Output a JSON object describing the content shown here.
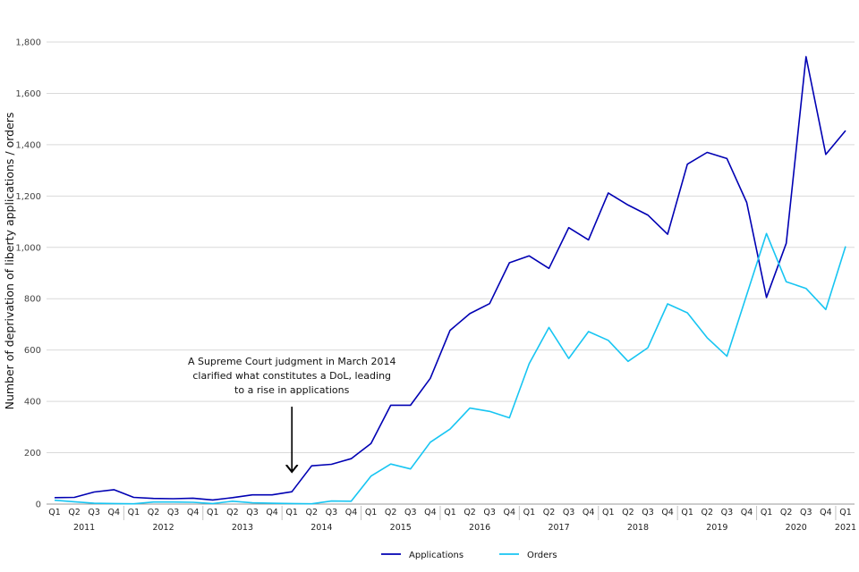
{
  "chart_data": {
    "type": "line",
    "ylabel": "Number of deprivation of liberty applications / orders",
    "ylim": [
      0,
      1800
    ],
    "yticks": [
      0,
      200,
      400,
      600,
      800,
      1000,
      1200,
      1400,
      1600,
      1800
    ],
    "ytick_labels": [
      "0",
      "200",
      "400",
      "600",
      "800",
      "1,000",
      "1,200",
      "1,400",
      "1,600",
      "1,800"
    ],
    "grid": true,
    "legend_position": "bottom-center",
    "quarters": [
      "Q1",
      "Q2",
      "Q3",
      "Q4",
      "Q1",
      "Q2",
      "Q3",
      "Q4",
      "Q1",
      "Q2",
      "Q3",
      "Q4",
      "Q1",
      "Q2",
      "Q3",
      "Q4",
      "Q1",
      "Q2",
      "Q3",
      "Q4",
      "Q1",
      "Q2",
      "Q3",
      "Q4",
      "Q1",
      "Q2",
      "Q3",
      "Q4",
      "Q1",
      "Q2",
      "Q3",
      "Q4",
      "Q1",
      "Q2",
      "Q3",
      "Q4",
      "Q1",
      "Q2",
      "Q3",
      "Q4",
      "Q1"
    ],
    "years": [
      {
        "label": "2011",
        "start": 0,
        "count": 4
      },
      {
        "label": "2012",
        "start": 4,
        "count": 4
      },
      {
        "label": "2013",
        "start": 8,
        "count": 4
      },
      {
        "label": "2014",
        "start": 12,
        "count": 4
      },
      {
        "label": "2015",
        "start": 16,
        "count": 4
      },
      {
        "label": "2016",
        "start": 20,
        "count": 4
      },
      {
        "label": "2017",
        "start": 24,
        "count": 4
      },
      {
        "label": "2018",
        "start": 28,
        "count": 4
      },
      {
        "label": "2019",
        "start": 32,
        "count": 4
      },
      {
        "label": "2020",
        "start": 36,
        "count": 4
      },
      {
        "label": "2021",
        "start": 40,
        "count": 1
      }
    ],
    "series": [
      {
        "name": "Applications",
        "color": "#0000b3",
        "values": [
          25,
          26,
          47,
          56,
          26,
          22,
          21,
          23,
          16,
          25,
          36,
          36,
          48,
          149,
          155,
          177,
          236,
          385,
          385,
          490,
          677,
          742,
          781,
          940,
          967,
          918,
          1077,
          1029,
          1212,
          1165,
          1126,
          1051,
          1324,
          1370,
          1346,
          1175,
          805,
          1016,
          1743,
          1362,
          1455
        ]
      },
      {
        "name": "Orders",
        "color": "#17c5f2",
        "values": [
          15,
          9,
          3,
          2,
          1,
          8,
          8,
          7,
          2,
          11,
          5,
          3,
          2,
          1,
          12,
          11,
          109,
          156,
          137,
          241,
          292,
          374,
          361,
          336,
          547,
          688,
          567,
          672,
          638,
          556,
          609,
          780,
          745,
          648,
          576,
          815,
          1054,
          866,
          840,
          758,
          1004
        ]
      }
    ],
    "annotation": {
      "lines": [
        "A Supreme Court judgment in March 2014",
        "clarified what constitutes a DoL, leading",
        "to a rise in applications"
      ],
      "arrow_at_index": 12
    }
  }
}
